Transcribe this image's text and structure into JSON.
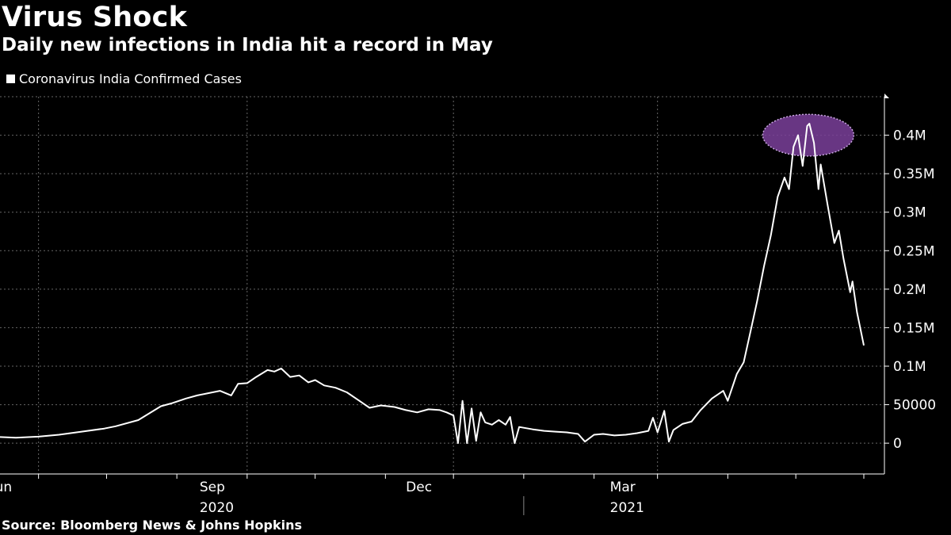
{
  "header": {
    "title": "Virus Shock",
    "subtitle": "Daily new infections in India hit a record in May"
  },
  "legend": {
    "label": "Coronavirus India Confirmed Cases"
  },
  "footer": {
    "source": "Source: Bloomberg News & Johns Hopkins"
  },
  "colors": {
    "background": "#000000",
    "line": "#ffffff",
    "grid": "#666666",
    "highlight": "#7a3f9a"
  },
  "chart_data": {
    "type": "line",
    "title": "Virus Shock",
    "subtitle": "Daily new infections in India hit a record in May",
    "xlabel": "",
    "ylabel": "",
    "grid": true,
    "legend_position": "top-left",
    "x_range": [
      "2020-05-15",
      "2021-05-31"
    ],
    "ylim": [
      -40000,
      450000
    ],
    "y_ticks": [
      0,
      50000,
      100000,
      150000,
      200000,
      250000,
      300000,
      350000,
      400000
    ],
    "y_tick_labels": [
      "0",
      "50000",
      "0.1M",
      "0.15M",
      "0.2M",
      "0.25M",
      "0.3M",
      "0.35M",
      "0.4M"
    ],
    "x_tick_labels": [
      {
        "label": "Jun",
        "date": "2020-06-01"
      },
      {
        "label": "Sep",
        "date": "2020-09-01"
      },
      {
        "label": "Dec",
        "date": "2020-12-01"
      },
      {
        "label": "Mar",
        "date": "2021-03-01"
      }
    ],
    "year_labels": [
      {
        "label": "2020",
        "date": "2020-09-01"
      },
      {
        "label": "2021",
        "date": "2021-03-01"
      }
    ],
    "annotation": {
      "type": "ellipse-highlight",
      "date_range": [
        "2021-04-29",
        "2021-05-14"
      ],
      "value_range": [
        375000,
        425000
      ]
    },
    "series": [
      {
        "name": "Coronavirus India Confirmed Cases",
        "points": [
          [
            "2020-05-15",
            8000
          ],
          [
            "2020-05-22",
            7000
          ],
          [
            "2020-06-01",
            8500
          ],
          [
            "2020-06-10",
            11000
          ],
          [
            "2020-06-20",
            15000
          ],
          [
            "2020-06-30",
            19000
          ],
          [
            "2020-07-05",
            22000
          ],
          [
            "2020-07-15",
            30000
          ],
          [
            "2020-07-25",
            48000
          ],
          [
            "2020-07-30",
            52000
          ],
          [
            "2020-08-05",
            58000
          ],
          [
            "2020-08-10",
            62000
          ],
          [
            "2020-08-15",
            65000
          ],
          [
            "2020-08-20",
            68000
          ],
          [
            "2020-08-25",
            62000
          ],
          [
            "2020-08-28",
            77000
          ],
          [
            "2020-09-01",
            78000
          ],
          [
            "2020-09-05",
            86000
          ],
          [
            "2020-09-10",
            95000
          ],
          [
            "2020-09-13",
            93000
          ],
          [
            "2020-09-16",
            97000
          ],
          [
            "2020-09-20",
            86000
          ],
          [
            "2020-09-24",
            88000
          ],
          [
            "2020-09-28",
            79000
          ],
          [
            "2020-10-01",
            82000
          ],
          [
            "2020-10-05",
            75000
          ],
          [
            "2020-10-10",
            72000
          ],
          [
            "2020-10-15",
            66000
          ],
          [
            "2020-10-20",
            56000
          ],
          [
            "2020-10-25",
            46000
          ],
          [
            "2020-10-30",
            49000
          ],
          [
            "2020-11-05",
            47000
          ],
          [
            "2020-11-10",
            43000
          ],
          [
            "2020-11-15",
            40000
          ],
          [
            "2020-11-20",
            44000
          ],
          [
            "2020-11-25",
            43000
          ],
          [
            "2020-11-28",
            40000
          ],
          [
            "2020-12-01",
            36000
          ],
          [
            "2020-12-03",
            0
          ],
          [
            "2020-12-05",
            55000
          ],
          [
            "2020-12-07",
            0
          ],
          [
            "2020-12-09",
            45000
          ],
          [
            "2020-12-11",
            3000
          ],
          [
            "2020-12-13",
            40000
          ],
          [
            "2020-12-15",
            27000
          ],
          [
            "2020-12-18",
            24000
          ],
          [
            "2020-12-21",
            30000
          ],
          [
            "2020-12-24",
            24000
          ],
          [
            "2020-12-26",
            34000
          ],
          [
            "2020-12-28",
            0
          ],
          [
            "2020-12-30",
            21000
          ],
          [
            "2021-01-05",
            18000
          ],
          [
            "2021-01-10",
            16000
          ],
          [
            "2021-01-15",
            15000
          ],
          [
            "2021-01-20",
            14000
          ],
          [
            "2021-01-25",
            12000
          ],
          [
            "2021-01-28",
            2000
          ],
          [
            "2021-02-01",
            11000
          ],
          [
            "2021-02-05",
            12000
          ],
          [
            "2021-02-10",
            10000
          ],
          [
            "2021-02-15",
            11000
          ],
          [
            "2021-02-20",
            13000
          ],
          [
            "2021-02-25",
            16000
          ],
          [
            "2021-02-27",
            33000
          ],
          [
            "2021-03-01",
            14000
          ],
          [
            "2021-03-04",
            42000
          ],
          [
            "2021-03-06",
            2000
          ],
          [
            "2021-03-08",
            17000
          ],
          [
            "2021-03-12",
            25000
          ],
          [
            "2021-03-16",
            28000
          ],
          [
            "2021-03-20",
            43000
          ],
          [
            "2021-03-25",
            58000
          ],
          [
            "2021-03-30",
            68000
          ],
          [
            "2021-04-01",
            55000
          ],
          [
            "2021-04-05",
            90000
          ],
          [
            "2021-04-08",
            105000
          ],
          [
            "2021-04-11",
            145000
          ],
          [
            "2021-04-14",
            185000
          ],
          [
            "2021-04-17",
            230000
          ],
          [
            "2021-04-20",
            270000
          ],
          [
            "2021-04-23",
            320000
          ],
          [
            "2021-04-26",
            345000
          ],
          [
            "2021-04-28",
            330000
          ],
          [
            "2021-04-30",
            385000
          ],
          [
            "2021-05-02",
            400000
          ],
          [
            "2021-05-04",
            360000
          ],
          [
            "2021-05-06",
            412000
          ],
          [
            "2021-05-07",
            415000
          ],
          [
            "2021-05-09",
            390000
          ],
          [
            "2021-05-11",
            330000
          ],
          [
            "2021-05-12",
            362000
          ],
          [
            "2021-05-15",
            310000
          ],
          [
            "2021-05-18",
            260000
          ],
          [
            "2021-05-20",
            276000
          ],
          [
            "2021-05-22",
            240000
          ],
          [
            "2021-05-25",
            196000
          ],
          [
            "2021-05-26",
            210000
          ],
          [
            "2021-05-28",
            170000
          ],
          [
            "2021-05-31",
            127000
          ]
        ]
      }
    ]
  }
}
